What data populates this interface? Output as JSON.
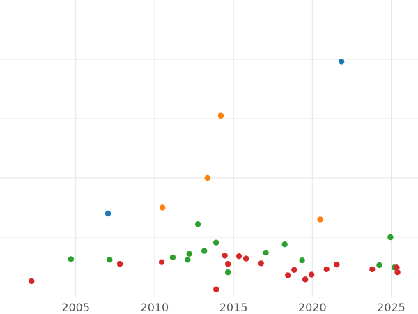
{
  "chart_data": {
    "type": "scatter",
    "title": "",
    "xlabel": "",
    "ylabel": "",
    "xlim": [
      2000.2,
      2026.7
    ],
    "ylim": [
      0,
      5
    ],
    "x_ticks": [
      2005,
      2010,
      2015,
      2020,
      2025
    ],
    "x_tick_labels": [
      "2005",
      "2010",
      "2015",
      "2020",
      "2025"
    ],
    "y_gridlines": [
      1,
      2,
      3,
      4
    ],
    "grid": true,
    "legend": "none",
    "series": [
      {
        "color": "#1f77b4",
        "points": [
          {
            "x": 2007.05,
            "y": 1.4
          },
          {
            "x": 2021.85,
            "y": 3.96
          }
        ]
      },
      {
        "color": "#ff7f0e",
        "points": [
          {
            "x": 2010.5,
            "y": 1.5
          },
          {
            "x": 2013.35,
            "y": 2.0
          },
          {
            "x": 2014.2,
            "y": 3.05
          },
          {
            "x": 2020.5,
            "y": 1.3
          }
        ]
      },
      {
        "color": "#2ca02c",
        "points": [
          {
            "x": 2004.7,
            "y": 0.63
          },
          {
            "x": 2007.15,
            "y": 0.62
          },
          {
            "x": 2011.15,
            "y": 0.66
          },
          {
            "x": 2012.1,
            "y": 0.62
          },
          {
            "x": 2012.2,
            "y": 0.72
          },
          {
            "x": 2012.75,
            "y": 1.22
          },
          {
            "x": 2013.15,
            "y": 0.77
          },
          {
            "x": 2013.9,
            "y": 0.91
          },
          {
            "x": 2014.65,
            "y": 0.41
          },
          {
            "x": 2017.05,
            "y": 0.74
          },
          {
            "x": 2018.25,
            "y": 0.88
          },
          {
            "x": 2019.35,
            "y": 0.61
          },
          {
            "x": 2024.25,
            "y": 0.53
          },
          {
            "x": 2024.95,
            "y": 1.0
          },
          {
            "x": 2025.2,
            "y": 0.49
          }
        ]
      },
      {
        "color": "#d62728",
        "points": [
          {
            "x": 2002.2,
            "y": 0.26
          },
          {
            "x": 2007.8,
            "y": 0.55
          },
          {
            "x": 2010.45,
            "y": 0.58
          },
          {
            "x": 2013.9,
            "y": 0.12
          },
          {
            "x": 2014.45,
            "y": 0.69
          },
          {
            "x": 2014.65,
            "y": 0.55
          },
          {
            "x": 2015.35,
            "y": 0.68
          },
          {
            "x": 2015.8,
            "y": 0.64
          },
          {
            "x": 2016.75,
            "y": 0.56
          },
          {
            "x": 2018.45,
            "y": 0.36
          },
          {
            "x": 2018.85,
            "y": 0.45
          },
          {
            "x": 2019.55,
            "y": 0.29
          },
          {
            "x": 2019.95,
            "y": 0.37
          },
          {
            "x": 2020.9,
            "y": 0.46
          },
          {
            "x": 2021.55,
            "y": 0.54
          },
          {
            "x": 2023.8,
            "y": 0.46
          },
          {
            "x": 2025.35,
            "y": 0.49
          },
          {
            "x": 2025.4,
            "y": 0.41
          }
        ]
      }
    ]
  }
}
